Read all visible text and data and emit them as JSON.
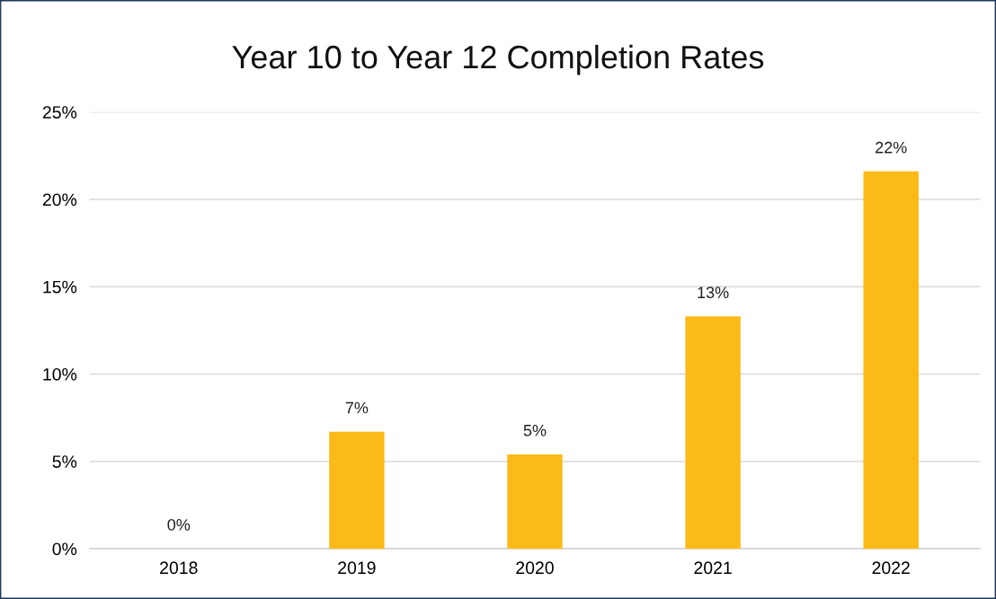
{
  "chart_data": {
    "type": "bar",
    "title": "Year 10 to Year 12 Completion Rates",
    "categories": [
      "2018",
      "2019",
      "2020",
      "2021",
      "2022"
    ],
    "values": [
      0,
      6.7,
      5.4,
      13.3,
      21.6
    ],
    "value_labels": [
      "0%",
      "7%",
      "5%",
      "13%",
      "22%"
    ],
    "color": "#fbba17",
    "ylim": [
      0,
      25
    ],
    "yticks": [
      {
        "value": 0,
        "label": "0%"
      },
      {
        "value": 5,
        "label": "5%"
      },
      {
        "value": 10,
        "label": "10%"
      },
      {
        "value": 15,
        "label": "15%"
      },
      {
        "value": 20,
        "label": "20%"
      },
      {
        "value": 25,
        "label": "25%"
      }
    ],
    "grid": "y"
  }
}
